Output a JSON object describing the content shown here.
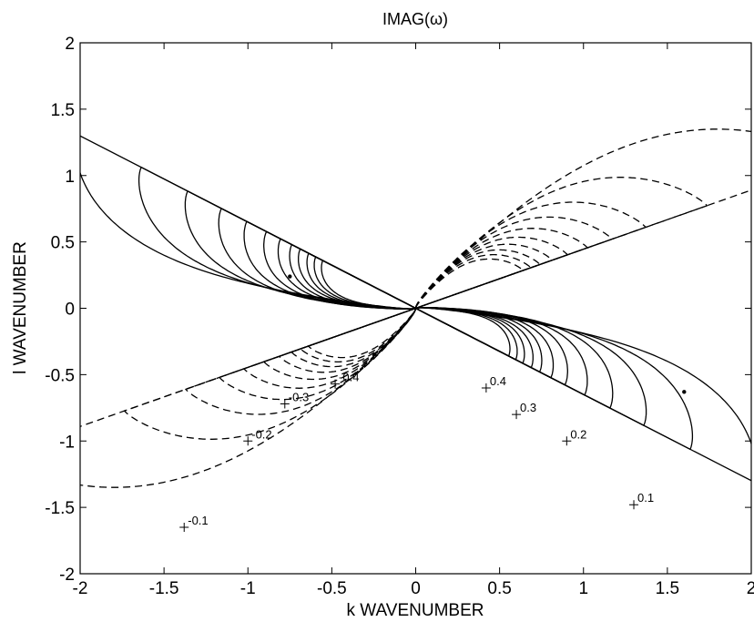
{
  "chart_data": {
    "type": "contour",
    "title": "IMAG(ω)",
    "xlabel": "k WAVENUMBER",
    "ylabel": "l WAVENUMBER",
    "xlim": [
      -2,
      2
    ],
    "ylim": [
      -2,
      2
    ],
    "xticks": [
      "-2",
      "-1.5",
      "-1",
      "-0.5",
      "0",
      "0.5",
      "1",
      "1.5",
      "2"
    ],
    "yticks": [
      "-2",
      "-1.5",
      "-1",
      "-0.5",
      "0",
      "0.5",
      "1",
      "1.5",
      "2"
    ],
    "line_styles": {
      "positive": "solid",
      "negative": "dashed"
    },
    "contour_labels": [
      {
        "text": "0.1",
        "k": 1.3,
        "l": -1.48
      },
      {
        "text": "0.2",
        "k": 0.9,
        "l": -1.0
      },
      {
        "text": "0.3",
        "k": 0.6,
        "l": -0.8
      },
      {
        "text": "0.4",
        "k": 0.42,
        "l": -0.6
      },
      {
        "text": "-0.1",
        "k": -1.38,
        "l": -1.65
      },
      {
        "text": "-0.2",
        "k": -1.0,
        "l": -1.0
      },
      {
        "text": "-0.3",
        "k": -0.78,
        "l": -0.72
      },
      {
        "text": "-0.4",
        "k": -0.48,
        "l": -0.57
      }
    ],
    "positive_lobes": {
      "lobe_lengths": [
        2.4,
        1.95,
        1.62,
        1.38,
        1.2,
        1.06,
        0.96,
        0.88,
        0.82,
        0.76,
        0.71,
        0.66
      ],
      "lobe_widths": [
        0.9,
        0.78,
        0.7,
        0.64,
        0.58,
        0.53,
        0.48,
        0.44,
        0.4,
        0.37,
        0.34,
        0.31
      ],
      "orientation_deg": -27,
      "lobe_skew": -0.5,
      "lobe_angle_offset_deg": -6
    },
    "negative_lobes": {
      "lobe_lengths": [
        2.7,
        1.9,
        1.5,
        1.28,
        1.12,
        0.99,
        0.89,
        0.81,
        0.75,
        0.7
      ],
      "lobe_widths": [
        1.15,
        0.9,
        0.76,
        0.66,
        0.58,
        0.52,
        0.47,
        0.43,
        0.39,
        0.35
      ],
      "orientation_deg": 24,
      "lobe_skew": -0.42,
      "lobe_angle_offset_deg": 0
    },
    "dots": [
      {
        "k": 1.6,
        "l": -0.63
      },
      {
        "k": -0.75,
        "l": 0.24
      }
    ]
  }
}
